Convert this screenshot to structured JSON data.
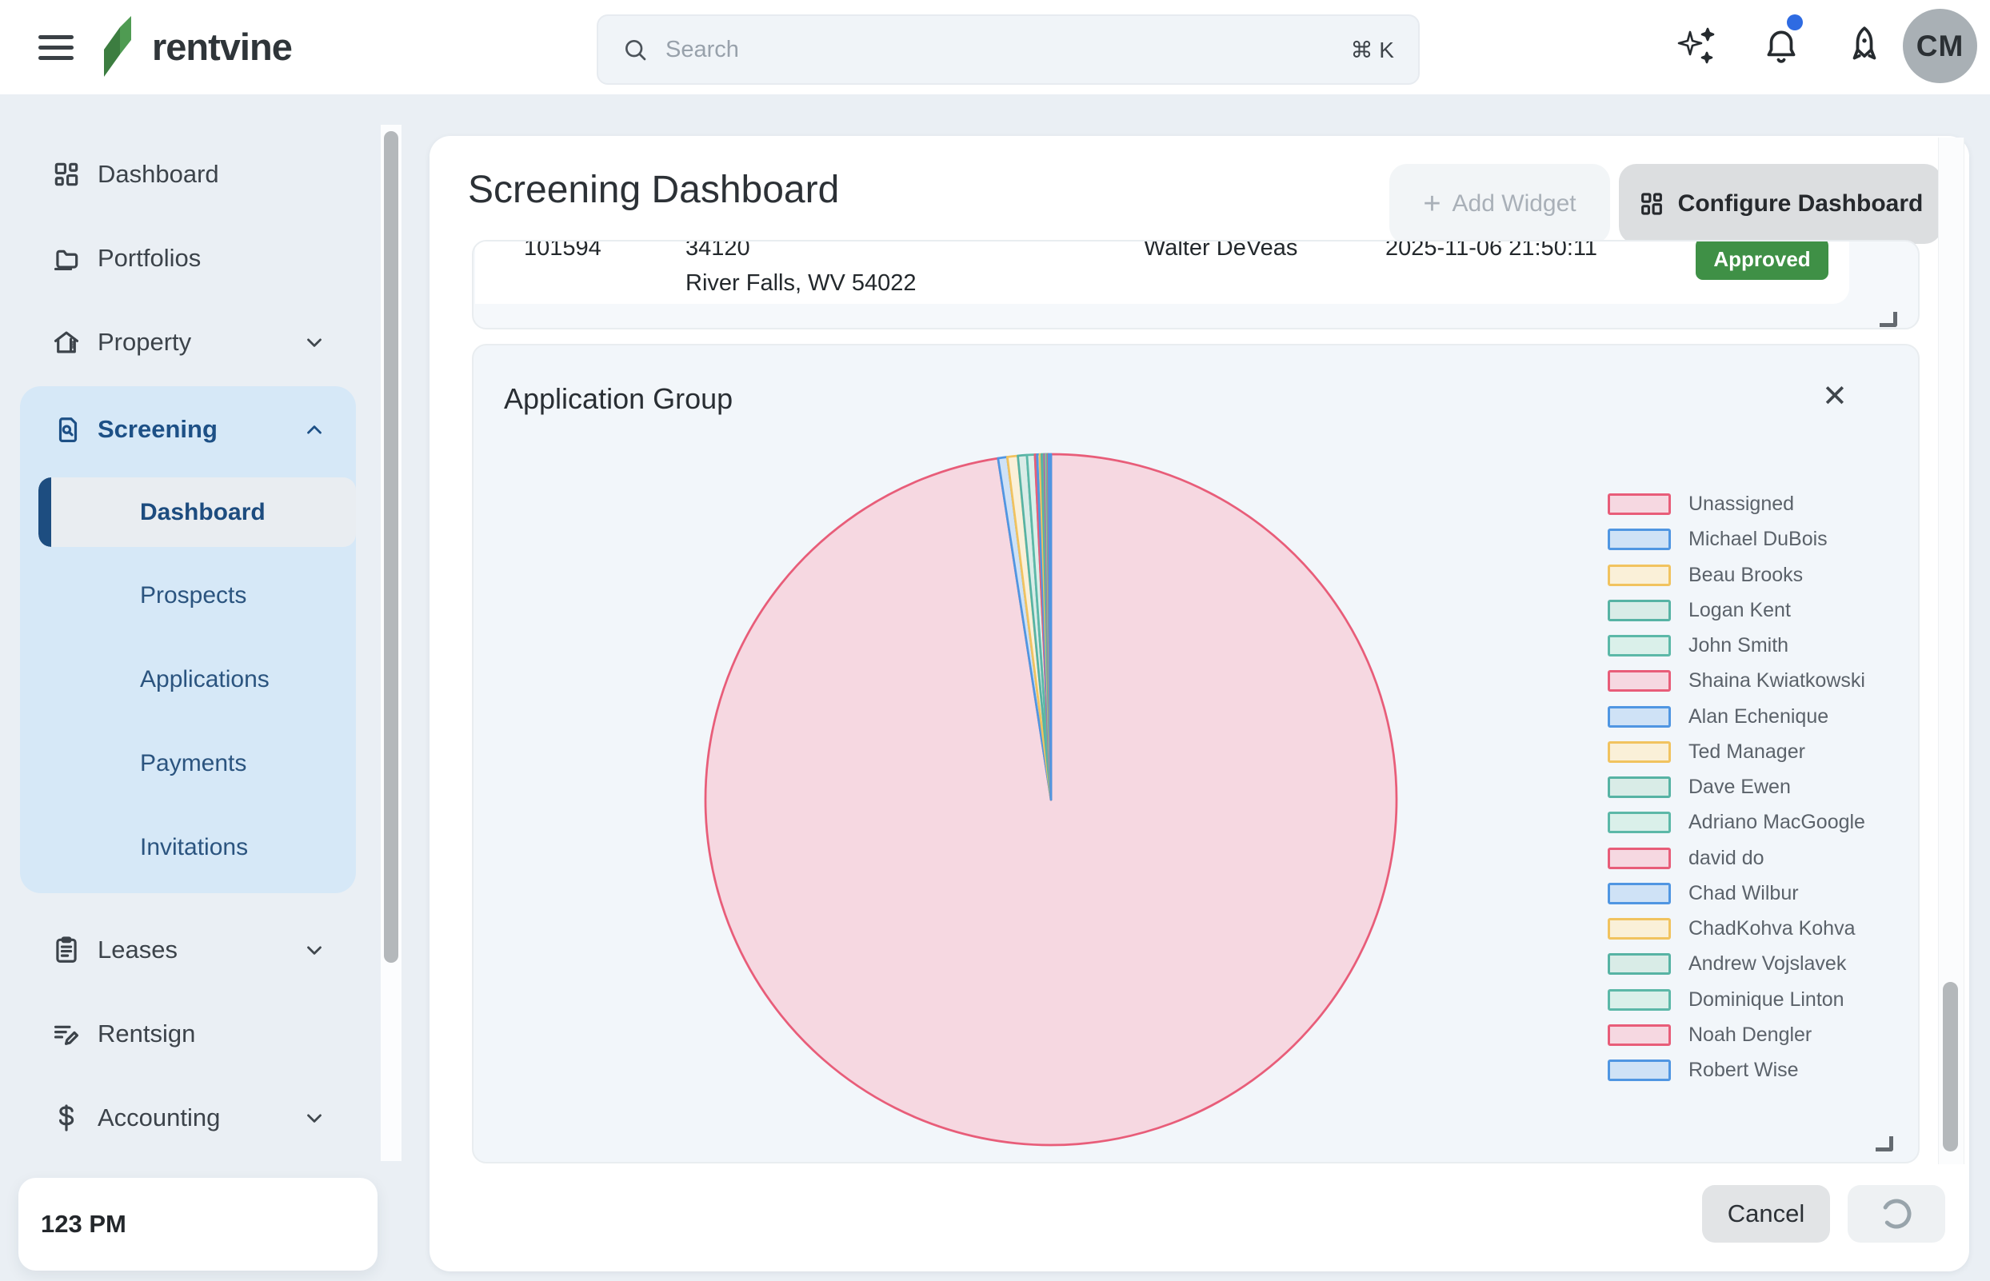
{
  "topbar": {
    "brand": "rentvine",
    "search": {
      "placeholder": "Search",
      "shortcut": "⌘ K"
    },
    "avatar_initials": "CM",
    "icons": [
      "sparkles-icon",
      "bell-icon",
      "rocket-icon"
    ],
    "notification_dot": true
  },
  "sidebar": {
    "items": [
      {
        "label": "Dashboard",
        "icon": "dashboard-grid-icon"
      },
      {
        "label": "Portfolios",
        "icon": "folder-icon"
      },
      {
        "label": "Property",
        "icon": "house-icon",
        "chevron": "down"
      },
      {
        "label": "Screening",
        "icon": "doc-search-icon",
        "chevron": "up",
        "expanded": true,
        "children": [
          {
            "label": "Dashboard",
            "active": true
          },
          {
            "label": "Prospects"
          },
          {
            "label": "Applications"
          },
          {
            "label": "Payments"
          },
          {
            "label": "Invitations"
          }
        ]
      },
      {
        "label": "Leases",
        "icon": "clipboard-icon",
        "chevron": "down"
      },
      {
        "label": "Rentsign",
        "icon": "signature-icon"
      },
      {
        "label": "Accounting",
        "icon": "dollar-icon",
        "chevron": "down"
      }
    ],
    "footer_time": "123 PM"
  },
  "main": {
    "title": "Screening Dashboard",
    "add_widget_label": "Add Widget",
    "configure_label": "Configure Dashboard",
    "table_widget": {
      "row": {
        "id": "101594",
        "address_line1": "34120",
        "address_line2": "River Falls, WV 54022",
        "applicant": "Walter DeVeas",
        "timestamp": "2025-11-06 21:50:11",
        "status": "Approved",
        "status_color": "#3f9046"
      }
    },
    "pie_widget": {
      "title": "Application Group",
      "close_icon": "✕"
    },
    "footer": {
      "cancel_label": "Cancel",
      "loading": true
    }
  },
  "chart_data": {
    "type": "pie",
    "title": "Application Group",
    "legend_position": "right",
    "start_at": "12-oclock",
    "direction": "clockwise",
    "labels": [
      "Unassigned",
      "Michael DuBois",
      "Beau Brooks",
      "Logan Kent",
      "John Smith",
      "Shaina Kwiatkowski",
      "Alan Echenique",
      "Ted Manager",
      "Dave Ewen",
      "Adriano MacGoogle",
      "david do",
      "Chad Wilbur",
      "ChadKohva Kohva",
      "Andrew Vojslavek",
      "Dominique Linton",
      "Noah Dengler",
      "Robert Wise"
    ],
    "values_percent": [
      97.55,
      0.43,
      0.49,
      0.42,
      0.37,
      0.1,
      0.12,
      0.09,
      0.08,
      0.05,
      0.04,
      0.04,
      0.03,
      0.03,
      0.03,
      0.03,
      0.1
    ],
    "palette": [
      {
        "name": "pink",
        "fill": "#f6d8e1",
        "stroke": "#e85d79"
      },
      {
        "name": "blue",
        "fill": "#cfe2f6",
        "stroke": "#5096e2"
      },
      {
        "name": "yellow",
        "fill": "#faf0d8",
        "stroke": "#f1c35f"
      },
      {
        "name": "teal",
        "fill": "#d9ece7",
        "stroke": "#57b3a4"
      },
      {
        "name": "mint",
        "fill": "#daf0ea",
        "stroke": "#5cb8a8"
      }
    ]
  },
  "colors": {
    "page_bg": "#eaeff4",
    "topbar_bg": "#ffffff",
    "card_bg": "#ffffff",
    "widget_bg": "#f2f6fa",
    "widget_border": "#e9edf0",
    "accent_navy": "#1d4d80",
    "submenu_bg": "#d6e8f7",
    "link_blue": "#3276d2",
    "approved_green": "#3f9046",
    "notification_blue": "#2e6be2"
  }
}
